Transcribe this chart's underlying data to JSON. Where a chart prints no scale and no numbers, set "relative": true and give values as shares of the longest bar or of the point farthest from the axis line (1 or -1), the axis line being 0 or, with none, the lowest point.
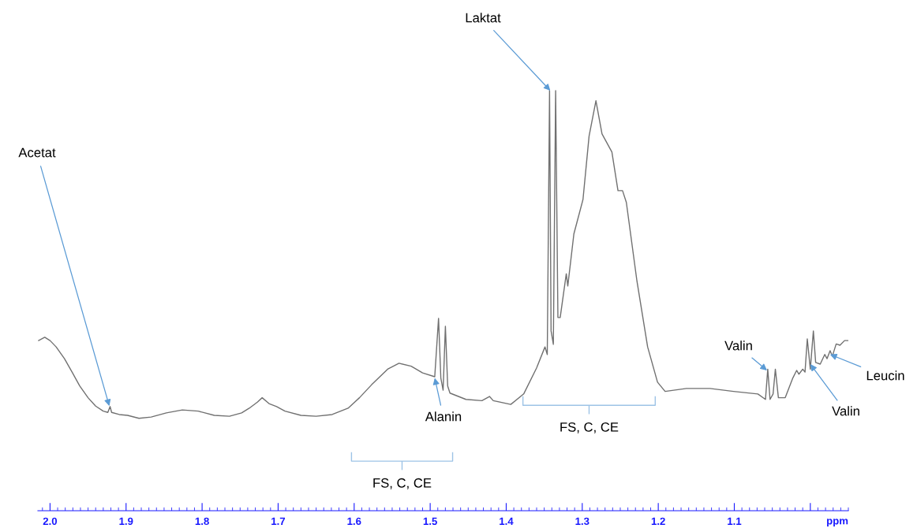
{
  "chart_data": {
    "type": "line",
    "relative": true,
    "xlabel": "ppm",
    "tick_labels": "x",
    "xlim": [
      2.016,
      0.95
    ],
    "xticks": [
      {
        "value": 2.0,
        "label": "2.0"
      },
      1.9,
      1.8,
      1.7,
      1.6,
      {
        "value": 1.5,
        "label": "1.5"
      },
      1.4,
      1.3,
      1.2,
      1.1,
      {
        "value": 1.0,
        "label": null
      }
    ],
    "series": [
      {
        "color": "#707070",
        "x": [
          2.015,
          2.007,
          2.0,
          1.992,
          1.981,
          1.971,
          1.961,
          1.95,
          1.94,
          1.93,
          1.924,
          1.921,
          1.919,
          1.909,
          1.898,
          1.883,
          1.867,
          1.847,
          1.826,
          1.805,
          1.784,
          1.764,
          1.748,
          1.738,
          1.727,
          1.721,
          1.712,
          1.702,
          1.691,
          1.67,
          1.65,
          1.629,
          1.608,
          1.593,
          1.577,
          1.556,
          1.541,
          1.525,
          1.51,
          1.494,
          1.489,
          1.486,
          1.483,
          1.48,
          1.477,
          1.474,
          1.453,
          1.432,
          1.422,
          1.417,
          1.394,
          1.377,
          1.36,
          1.349,
          1.346,
          1.343,
          1.341,
          1.338,
          1.335,
          1.332,
          1.329,
          1.321,
          1.319,
          1.311,
          1.299,
          1.291,
          1.282,
          1.274,
          1.261,
          1.253,
          1.247,
          1.242,
          1.228,
          1.214,
          1.201,
          1.191,
          1.163,
          1.132,
          1.101,
          1.069,
          1.059,
          1.056,
          1.053,
          1.049,
          1.046,
          1.042,
          1.033,
          1.023,
          1.018,
          1.015,
          1.01,
          1.007,
          1.004,
          1.0,
          0.996,
          0.993,
          0.987,
          0.981,
          0.978,
          0.974,
          0.971,
          0.966,
          0.961,
          0.955,
          0.95
        ],
        "values": [
          0.405,
          0.413,
          0.405,
          0.39,
          0.362,
          0.33,
          0.297,
          0.269,
          0.249,
          0.237,
          0.234,
          0.248,
          0.234,
          0.229,
          0.227,
          0.22,
          0.223,
          0.233,
          0.24,
          0.237,
          0.227,
          0.225,
          0.233,
          0.244,
          0.259,
          0.269,
          0.255,
          0.248,
          0.237,
          0.227,
          0.225,
          0.229,
          0.244,
          0.269,
          0.3,
          0.337,
          0.351,
          0.344,
          0.328,
          0.319,
          0.458,
          0.316,
          0.287,
          0.439,
          0.297,
          0.28,
          0.265,
          0.262,
          0.272,
          0.262,
          0.253,
          0.278,
          0.34,
          0.39,
          0.372,
          1.0,
          0.428,
          0.396,
          1.0,
          0.46,
          0.46,
          0.564,
          0.535,
          0.659,
          0.741,
          0.892,
          0.976,
          0.897,
          0.854,
          0.762,
          0.762,
          0.734,
          0.546,
          0.39,
          0.306,
          0.284,
          0.291,
          0.291,
          0.284,
          0.278,
          0.265,
          0.337,
          0.265,
          0.278,
          0.337,
          0.269,
          0.269,
          0.316,
          0.334,
          0.325,
          0.337,
          0.33,
          0.409,
          0.337,
          0.428,
          0.353,
          0.349,
          0.372,
          0.362,
          0.381,
          0.368,
          0.397,
          0.394,
          0.405,
          0.405
        ]
      }
    ],
    "annotations": [
      {
        "text": "Acetat",
        "x": 1.922,
        "y": 0.249
      },
      {
        "text": "Laktat",
        "x": 1.342,
        "y": 1.0
      },
      {
        "text": "Alanin",
        "x": 1.494,
        "y": 0.316
      },
      {
        "text": "Valin",
        "x": 1.057,
        "y": 0.334
      },
      {
        "text": "Valin",
        "x": 1.0,
        "y": 0.349
      },
      {
        "text": "Leucin",
        "x": 0.974,
        "y": 0.372
      },
      "FS, C, CE",
      "FS, C, CE"
    ]
  }
}
